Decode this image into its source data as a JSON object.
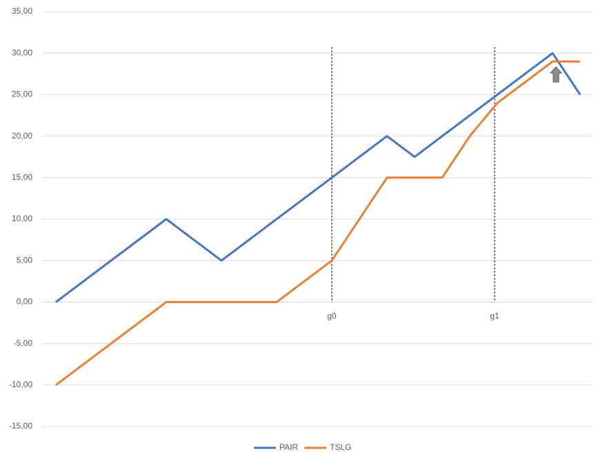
{
  "chart_data": {
    "type": "line",
    "series": [
      {
        "name": "PAIR",
        "color": "#4472c4",
        "x": [
          0,
          4,
          6,
          12,
          13,
          18,
          19
        ],
        "values": [
          0,
          10,
          5,
          20,
          17.5,
          30,
          25
        ]
      },
      {
        "name": "TSLG",
        "color": "#ed7d31",
        "x": [
          0,
          4,
          8,
          10,
          12,
          14,
          15,
          16,
          18,
          19
        ],
        "values": [
          -10,
          0,
          0,
          5,
          15,
          15,
          20,
          24,
          29,
          29
        ]
      }
    ],
    "markers": [
      {
        "x": 10,
        "label": "g0"
      },
      {
        "x": 15.9,
        "label": "g1"
      }
    ],
    "xlim": [
      -0.5,
      19.45
    ],
    "ylim": [
      -15,
      35
    ],
    "yticks": [
      {
        "value": -15,
        "label": "-15,00"
      },
      {
        "value": -10,
        "label": "-10,00"
      },
      {
        "value": -5,
        "label": "-5,00"
      },
      {
        "value": 0,
        "label": "0,00"
      },
      {
        "value": 5,
        "label": "5,00"
      },
      {
        "value": 10,
        "label": "10,00"
      },
      {
        "value": 15,
        "label": "15,00"
      },
      {
        "value": 20,
        "label": "20,00"
      },
      {
        "value": 25,
        "label": "25,00"
      },
      {
        "value": 30,
        "label": "30,00"
      },
      {
        "value": 35,
        "label": "35,00"
      }
    ],
    "grid": true
  }
}
